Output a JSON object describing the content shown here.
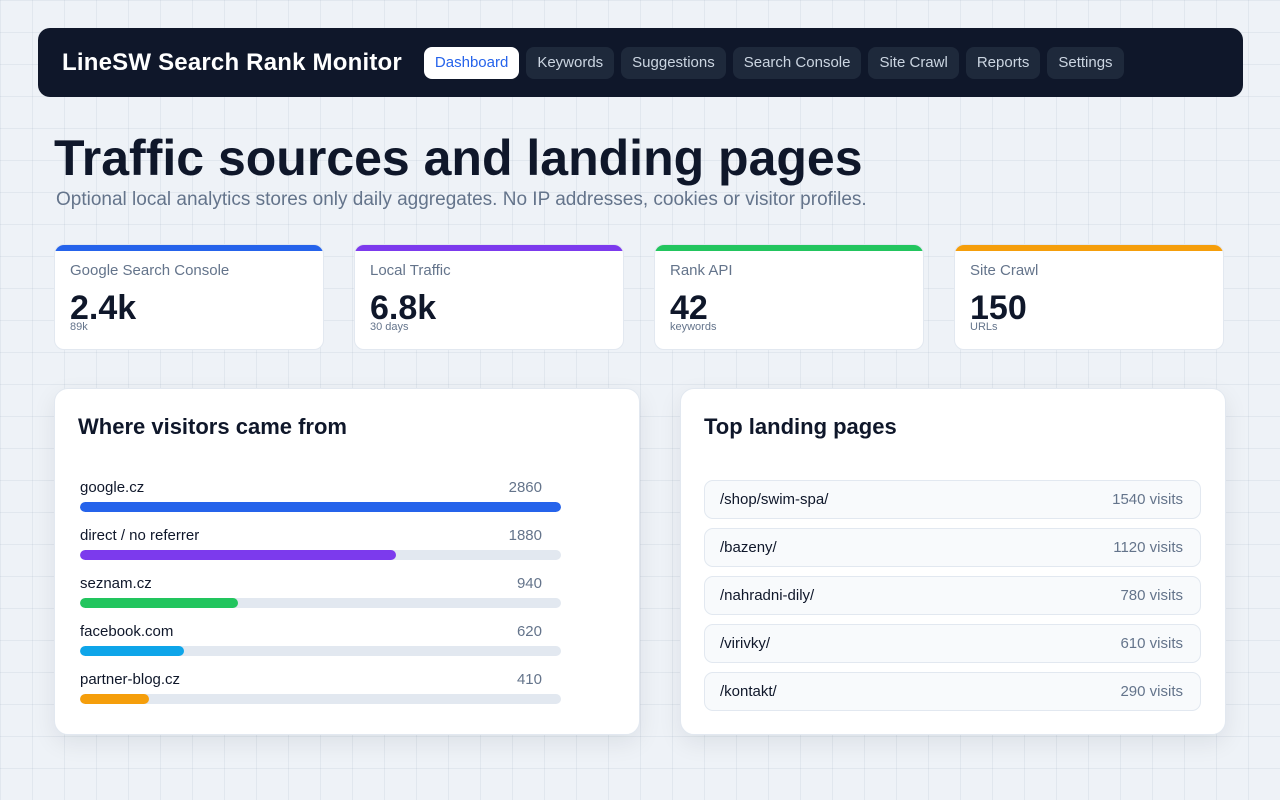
{
  "app": {
    "title": "LineSW Search Rank Monitor"
  },
  "nav": {
    "tabs": [
      {
        "label": "Dashboard",
        "active": true
      },
      {
        "label": "Keywords",
        "active": false
      },
      {
        "label": "Suggestions",
        "active": false
      },
      {
        "label": "Search Console",
        "active": false
      },
      {
        "label": "Site Crawl",
        "active": false
      },
      {
        "label": "Reports",
        "active": false
      },
      {
        "label": "Settings",
        "active": false
      }
    ]
  },
  "page": {
    "title": "Traffic sources and landing pages",
    "subtitle": "Optional local analytics stores only daily aggregates. No IP addresses, cookies or visitor profiles."
  },
  "stats": [
    {
      "label": "Google Search Console",
      "value": "2.4k",
      "sub": "89k",
      "color": "#2563eb"
    },
    {
      "label": "Local Traffic",
      "value": "6.8k",
      "sub": "30 days",
      "color": "#7c3aed"
    },
    {
      "label": "Rank API",
      "value": "42",
      "sub": "keywords",
      "color": "#22c55e"
    },
    {
      "label": "Site Crawl",
      "value": "150",
      "sub": "URLs",
      "color": "#f59e0b"
    }
  ],
  "sources": {
    "title": "Where visitors came from",
    "max": 2860,
    "items": [
      {
        "name": "google.cz",
        "count": 2860,
        "color": "#2563eb"
      },
      {
        "name": "direct / no referrer",
        "count": 1880,
        "color": "#7c3aed"
      },
      {
        "name": "seznam.cz",
        "count": 940,
        "color": "#22c55e"
      },
      {
        "name": "facebook.com",
        "count": 620,
        "color": "#0ea5e9"
      },
      {
        "name": "partner-blog.cz",
        "count": 410,
        "color": "#f59e0b"
      }
    ]
  },
  "landing": {
    "title": "Top landing pages",
    "items": [
      {
        "path": "/shop/swim-spa/",
        "visits": "1540 visits"
      },
      {
        "path": "/bazeny/",
        "visits": "1120 visits"
      },
      {
        "path": "/nahradni-dily/",
        "visits": "780 visits"
      },
      {
        "path": "/virivky/",
        "visits": "610 visits"
      },
      {
        "path": "/kontakt/",
        "visits": "290 visits"
      }
    ]
  }
}
